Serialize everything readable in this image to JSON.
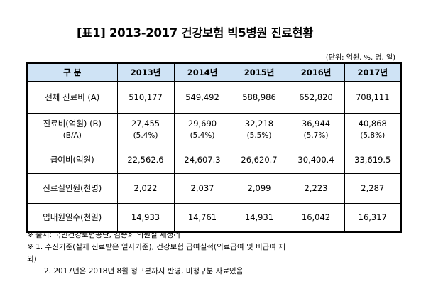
{
  "title": "[표1] 2013-2017 건강보험 빅5병원 진료현황",
  "unit": "(단위: 억원, %, 명, 일)",
  "table": {
    "header": [
      "구 분",
      "2013년",
      "2014년",
      "2015년",
      "2016년",
      "2017년"
    ],
    "rows": [
      {
        "label": "전체 진료비 (A)",
        "values": [
          "510,177",
          "549,492",
          "588,986",
          "652,820",
          "708,111"
        ]
      },
      {
        "label": "진료비(억원) (B)",
        "label_sub": "(B/A)",
        "values": [
          "27,455",
          "29,690",
          "32,218",
          "36,944",
          "40,868"
        ],
        "sub_values": [
          "(5.4%)",
          "(5.4%)",
          "(5.5%)",
          "(5.7%)",
          "(5.8%)"
        ]
      },
      {
        "label": "급여비(억원)",
        "values": [
          "22,562.6",
          "24,607.3",
          "26,620.7",
          "30,400.4",
          "33,619.5"
        ]
      },
      {
        "label": "진료실인원(천명)",
        "values": [
          "2,022",
          "2,037",
          "2,099",
          "2,223",
          "2,287"
        ]
      },
      {
        "label": "입내원일수(천일)",
        "values": [
          "14,933",
          "14,761",
          "14,931",
          "16,042",
          "16,317"
        ]
      }
    ]
  },
  "notes": {
    "source": "※ 출처: 국민건강보험공단, 김승희 의원실 재정리",
    "note1_line1": "※ 1. 수진기준(실제 진료받은 일자기준), 건강보험 급여실적(의료급여 및 비급여 제",
    "note1_line2": "외)",
    "note2": "2. 2017년은 2018년 8월 청구분까지 반영, 미청구분 자료있음"
  }
}
